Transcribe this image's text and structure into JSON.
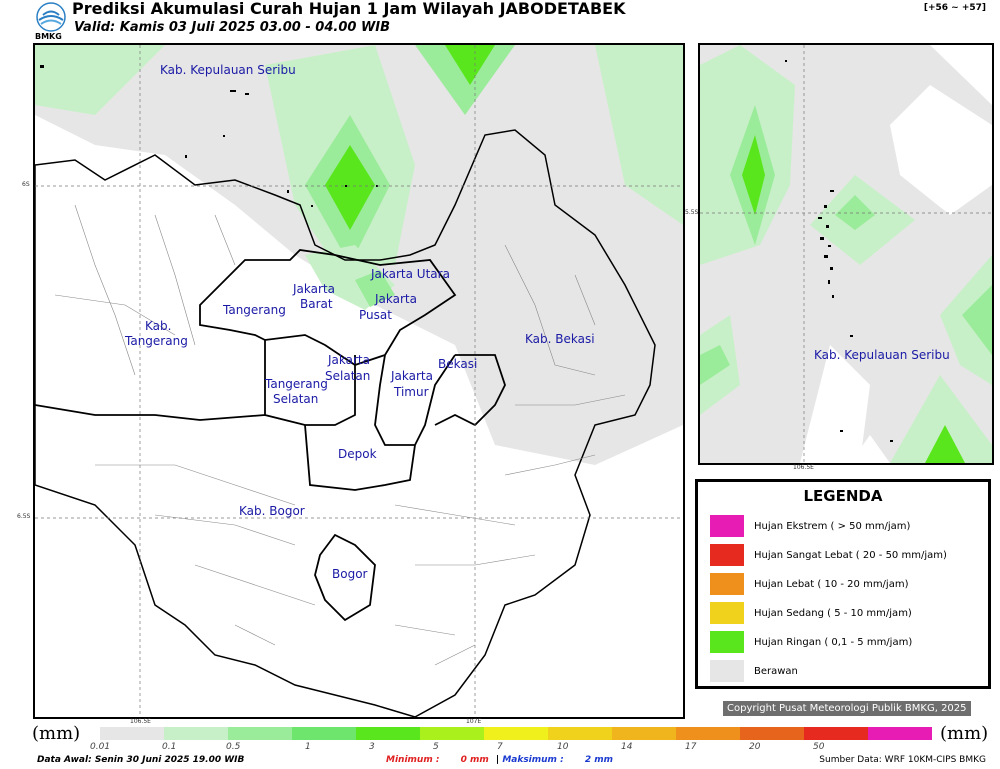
{
  "header": {
    "title": "Prediksi Akumulasi Curah Hujan 1 Jam Wilayah JABODETABEK",
    "valid": "Valid: Kamis 03 Juli 2025 03.00 - 04.00 WIB",
    "logo_text": "BMKG",
    "code": "[+56 ~ +57]"
  },
  "main_map": {
    "labels": {
      "kepulauan_seribu": "Kab. Kepulauan Seribu",
      "jakarta_utara": "Jakarta Utara",
      "jakarta_barat_1": "Jakarta",
      "jakarta_barat_2": "Barat",
      "jakarta_pusat_1": "Jakarta",
      "jakarta_pusat_2": "Pusat",
      "tangerang": "Tangerang",
      "kab_tangerang_1": "Kab.",
      "kab_tangerang_2": "Tangerang",
      "jakarta_selatan_1": "Jakarta",
      "jakarta_selatan_2": "Selatan",
      "jakarta_timur_1": "Jakarta",
      "jakarta_timur_2": "Timur",
      "bekasi": "Bekasi",
      "kab_bekasi": "Kab. Bekasi",
      "tangerang_selatan_1": "Tangerang",
      "tangerang_selatan_2": "Selatan",
      "depok": "Depok",
      "kab_bogor": "Kab. Bogor",
      "bogor": "Bogor"
    },
    "grid": {
      "lat_1": "6S",
      "lat_2": "6.5S",
      "lon_1": "106.5E",
      "lon_2": "107E"
    }
  },
  "inset_map": {
    "label": "Kab. Kepulauan Seribu",
    "grid": {
      "lat": "5.5S",
      "lon": "106.5E"
    }
  },
  "legend": {
    "title": "LEGENDA",
    "items": [
      {
        "label": "Hujan Ekstrem ( > 50 mm/jam)",
        "color": "#e61cb4"
      },
      {
        "label": "Hujan Sangat Lebat ( 20 - 50 mm/jam)",
        "color": "#e62a20"
      },
      {
        "label": "Hujan Lebat ( 10 - 20 mm/jam)",
        "color": "#f0901c"
      },
      {
        "label": "Hujan Sedang ( 5 - 10 mm/jam)",
        "color": "#f0d21c"
      },
      {
        "label": "Hujan Ringan ( 0,1 - 5 mm/jam)",
        "color": "#5ae61c"
      },
      {
        "label": "Berawan",
        "color": "#e6e6e6"
      }
    ]
  },
  "copyright": "Copyright Pusat Meteorologi Publik BMKG, 2025",
  "scale": {
    "unit_left": "(mm)",
    "unit_right": "(mm)",
    "ticks": [
      "0.01",
      "0.1",
      "0.5",
      "1",
      "3",
      "5",
      "7",
      "10",
      "14",
      "17",
      "20",
      "50"
    ],
    "colors": [
      "#e6e6e6",
      "#c8f0c8",
      "#9aeb9a",
      "#6ee66e",
      "#5ae61c",
      "#aaf01c",
      "#f0f01c",
      "#f0d21c",
      "#f0b41c",
      "#f0901c",
      "#e6641c",
      "#e62a20",
      "#e61cb4"
    ]
  },
  "footer": {
    "data_awal": "Data Awal: Senin 30 Juni 2025 19.00 WIB",
    "minimum_label": "Minimum :",
    "minimum_value": "0 mm",
    "separator": "|",
    "maximum_label": "Maksimum :",
    "maximum_value": "2 mm",
    "source": "Sumber Data: WRF 10KM-CIPS BMKG"
  }
}
